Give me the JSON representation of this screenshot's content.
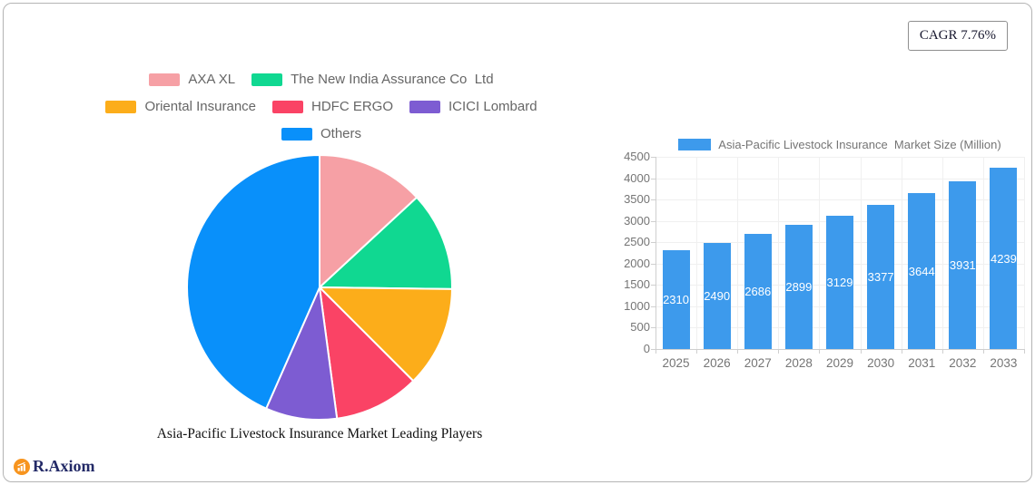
{
  "cagr": {
    "label": "CAGR 7.76%"
  },
  "logo": {
    "text": "R.Axiom",
    "icon_color": "#f7941e",
    "text_color": "#232a67"
  },
  "pie_section": {
    "title": "Asia-Pacific Livestock Insurance Market Leading Players"
  },
  "bar_section": {
    "legend": "Asia-Pacific Livestock Insurance  Market Size (Million)"
  },
  "chart_data": [
    {
      "type": "pie",
      "title": "Asia-Pacific Livestock Insurance Market Leading Players",
      "labels": [
        "AXA XL",
        "The New India Assurance Co  Ltd",
        "Oriental Insurance",
        "HDFC ERGO",
        "ICICI Lombard",
        "Others"
      ],
      "values_pct": [
        13.1,
        12.1,
        12.3,
        10.4,
        8.7,
        43.4
      ],
      "colors": [
        "#f6a0a5",
        "#10d891",
        "#fcad1a",
        "#fa4365",
        "#7d5cd2",
        "#0990fa"
      ],
      "start_angle_deg": 0,
      "direction": "clockwise",
      "slice_separator_color": "#ffffff",
      "legend_position": "top",
      "legend_rows": [
        2,
        3,
        1
      ]
    },
    {
      "type": "bar",
      "legend": "Asia-Pacific Livestock Insurance  Market Size (Million)",
      "categories": [
        "2025",
        "2026",
        "2027",
        "2028",
        "2029",
        "2030",
        "2031",
        "2032",
        "2033"
      ],
      "values": [
        2310,
        2490,
        2686,
        2899,
        3129,
        3377,
        3644,
        3931,
        4239
      ],
      "ylim": [
        0,
        4500
      ],
      "yticks": [
        0,
        500,
        1000,
        1500,
        2000,
        2500,
        3000,
        3500,
        4000,
        4500
      ],
      "bar_color": "#3d9aec",
      "value_label_color": "#ffffff",
      "grid": true,
      "legend_position": "top"
    }
  ]
}
